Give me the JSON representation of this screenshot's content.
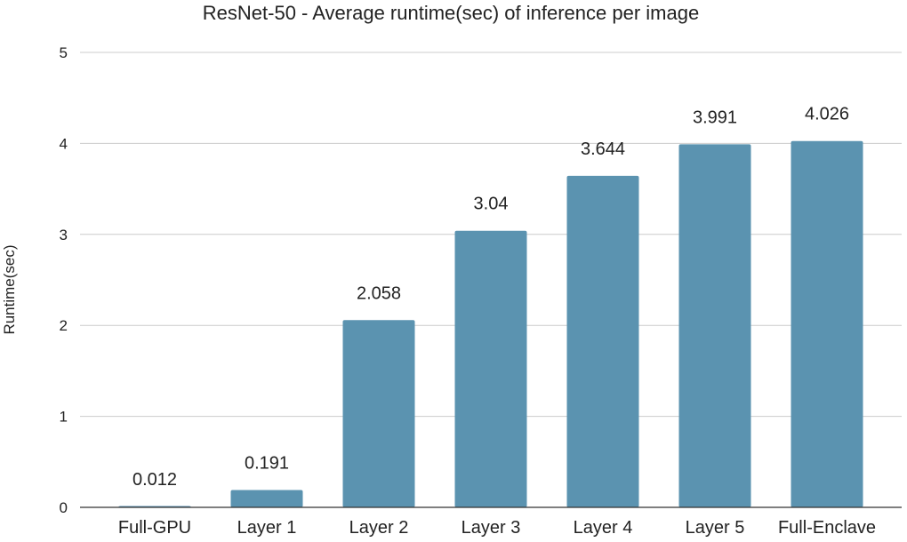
{
  "chart_data": {
    "type": "bar",
    "title": "ResNet-50 - Average runtime(sec) of inference per image",
    "xlabel": "",
    "ylabel": "Runtime(sec)",
    "categories": [
      "Full-GPU",
      "Layer 1",
      "Layer 2",
      "Layer 3",
      "Layer 4",
      "Layer 5",
      "Full-Enclave"
    ],
    "values": [
      0.012,
      0.191,
      2.058,
      3.04,
      3.644,
      3.991,
      4.026
    ],
    "data_labels": [
      "0.012",
      "0.191",
      "2.058",
      "3.04",
      "3.644",
      "3.991",
      "4.026"
    ],
    "ylim": [
      0,
      5
    ],
    "yticks": [
      0,
      1,
      2,
      3,
      4,
      5
    ],
    "ytick_labels": [
      "0",
      "1",
      "2",
      "3",
      "4",
      "5"
    ],
    "grid": true,
    "legend": "none",
    "bar_color": "#5b93b0"
  }
}
